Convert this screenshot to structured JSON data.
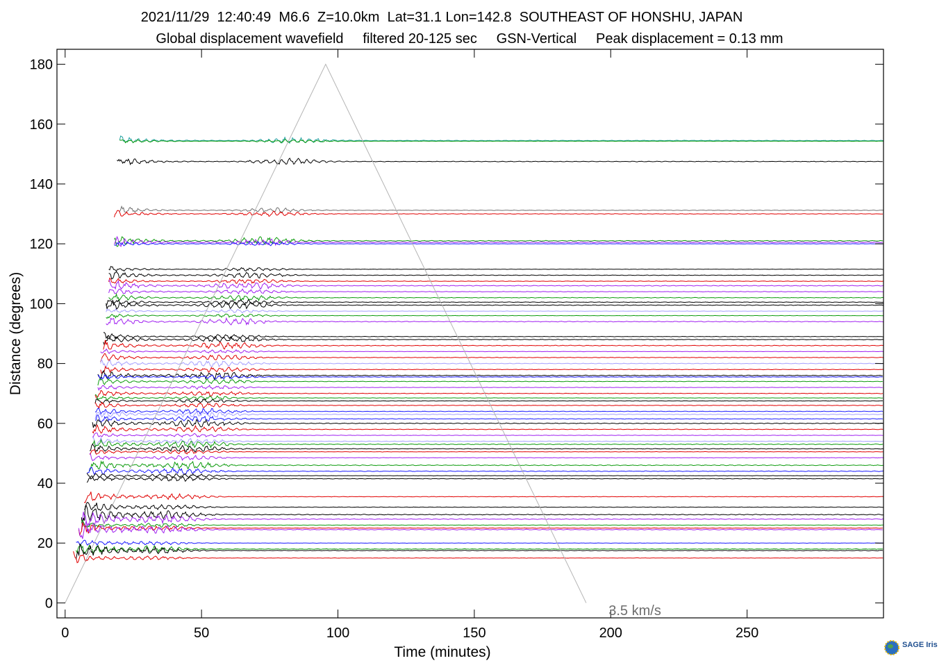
{
  "header": {
    "line1": "2021/11/29  12:40:49  M6.6  Z=10.0km  Lat=31.1 Lon=142.8  SOUTHEAST OF HONSHU, JAPAN",
    "line2": "Global displacement wavefield     filtered 20-125 sec     GSN-Vertical     Peak displacement = 0.13 mm"
  },
  "chart_data": {
    "type": "line",
    "title": "2021/11/29  12:40:49  M6.6  Z=10.0km  Lat=31.1 Lon=142.8  SOUTHEAST OF HONSHU, JAPAN",
    "subtitle": "Global displacement wavefield     filtered 20-125 sec     GSN-Vertical     Peak displacement = 0.13 mm",
    "xlabel": "Time (minutes)",
    "ylabel": "Distance (degrees)",
    "xlim": [
      -3,
      300
    ],
    "ylim": [
      -5,
      185
    ],
    "xticks": [
      0,
      50,
      100,
      150,
      200,
      250
    ],
    "yticks": [
      0,
      20,
      40,
      60,
      80,
      100,
      120,
      140,
      160,
      180
    ],
    "grid": false,
    "annotation": "3.5 km/s",
    "reference_line": {
      "name": "3.5 km/s",
      "points": [
        [
          0,
          0
        ],
        [
          95.5,
          180
        ],
        [
          191,
          0
        ]
      ],
      "color": "#b4b4b4"
    },
    "colors": {
      "black": "#000000",
      "red": "#e00000",
      "blue": "#1a1aff",
      "green": "#0b9a0b",
      "violet": "#a020f0",
      "lavender": "#a6a0ff",
      "gray": "#707070",
      "teal": "#20a0a0"
    },
    "traces": [
      {
        "distance": 154.5,
        "color": "#20a0a0",
        "start": 20
      },
      {
        "distance": 154.3,
        "color": "#0b9a0b",
        "start": 20
      },
      {
        "distance": 147.5,
        "color": "#000000",
        "start": 19
      },
      {
        "distance": 131.2,
        "color": "#707070",
        "start": 20
      },
      {
        "distance": 130.0,
        "color": "#e00000",
        "start": 18
      },
      {
        "distance": 121.0,
        "color": "#0b9a0b",
        "start": 18
      },
      {
        "distance": 120.5,
        "color": "#a020f0",
        "start": 18
      },
      {
        "distance": 120.0,
        "color": "#1a1aff",
        "start": 18
      },
      {
        "distance": 111.5,
        "color": "#000000",
        "start": 16
      },
      {
        "distance": 109.5,
        "color": "#000000",
        "start": 16
      },
      {
        "distance": 107.5,
        "color": "#e00000",
        "start": 16
      },
      {
        "distance": 106.0,
        "color": "#a020f0",
        "start": 16
      },
      {
        "distance": 104.0,
        "color": "#a020f0",
        "start": 16
      },
      {
        "distance": 102.0,
        "color": "#0b9a0b",
        "start": 16
      },
      {
        "distance": 100.5,
        "color": "#000000",
        "start": 15
      },
      {
        "distance": 99.5,
        "color": "#000000",
        "start": 15
      },
      {
        "distance": 97.5,
        "color": "#a6a0ff",
        "start": 15
      },
      {
        "distance": 96.0,
        "color": "#0b9a0b",
        "start": 15
      },
      {
        "distance": 94.0,
        "color": "#a020f0",
        "start": 15
      },
      {
        "distance": 89.0,
        "color": "#000000",
        "start": 14
      },
      {
        "distance": 88.0,
        "color": "#000000",
        "start": 14
      },
      {
        "distance": 86.0,
        "color": "#e00000",
        "start": 14
      },
      {
        "distance": 84.0,
        "color": "#a020f0",
        "start": 13
      },
      {
        "distance": 82.0,
        "color": "#e00000",
        "start": 13
      },
      {
        "distance": 80.0,
        "color": "#a6a0ff",
        "start": 13
      },
      {
        "distance": 78.0,
        "color": "#e00000",
        "start": 13
      },
      {
        "distance": 76.0,
        "color": "#000000",
        "start": 12
      },
      {
        "distance": 75.5,
        "color": "#1a1aff",
        "start": 12
      },
      {
        "distance": 74.0,
        "color": "#0b9a0b",
        "start": 12
      },
      {
        "distance": 72.0,
        "color": "#a020f0",
        "start": 12
      },
      {
        "distance": 70.0,
        "color": "#e00000",
        "start": 11
      },
      {
        "distance": 68.5,
        "color": "#0b9a0b",
        "start": 11
      },
      {
        "distance": 67.5,
        "color": "#000000",
        "start": 11
      },
      {
        "distance": 66.0,
        "color": "#e00000",
        "start": 11
      },
      {
        "distance": 64.0,
        "color": "#1a1aff",
        "start": 11
      },
      {
        "distance": 63.0,
        "color": "#a6a0ff",
        "start": 11
      },
      {
        "distance": 61.5,
        "color": "#1a1aff",
        "start": 11
      },
      {
        "distance": 60.0,
        "color": "#000000",
        "start": 10
      },
      {
        "distance": 58.0,
        "color": "#e00000",
        "start": 10
      },
      {
        "distance": 56.0,
        "color": "#a020f0",
        "start": 10
      },
      {
        "distance": 54.0,
        "color": "#a6a0ff",
        "start": 10
      },
      {
        "distance": 53.0,
        "color": "#0b9a0b",
        "start": 10
      },
      {
        "distance": 51.5,
        "color": "#000000",
        "start": 9
      },
      {
        "distance": 50.5,
        "color": "#e00000",
        "start": 9
      },
      {
        "distance": 48.5,
        "color": "#a020f0",
        "start": 9
      },
      {
        "distance": 46.0,
        "color": "#0b9a0b",
        "start": 9
      },
      {
        "distance": 44.0,
        "color": "#1a1aff",
        "start": 8
      },
      {
        "distance": 42.5,
        "color": "#000000",
        "start": 8
      },
      {
        "distance": 41.5,
        "color": "#000000",
        "start": 8
      },
      {
        "distance": 35.5,
        "color": "#e00000",
        "start": 7
      },
      {
        "distance": 32.0,
        "color": "#000000",
        "start": 7
      },
      {
        "distance": 29.5,
        "color": "#000000",
        "start": 6
      },
      {
        "distance": 28.0,
        "color": "#a020f0",
        "start": 6
      },
      {
        "distance": 26.0,
        "color": "#0b9a0b",
        "start": 6
      },
      {
        "distance": 25.0,
        "color": "#e00000",
        "start": 5
      },
      {
        "distance": 24.5,
        "color": "#a020f0",
        "start": 5
      },
      {
        "distance": 20.0,
        "color": "#1a1aff",
        "start": 4
      },
      {
        "distance": 18.0,
        "color": "#0b9a0b",
        "start": 4
      },
      {
        "distance": 17.5,
        "color": "#000000",
        "start": 4
      },
      {
        "distance": 15.0,
        "color": "#e00000",
        "start": 3
      }
    ]
  },
  "logo": {
    "text": "SAGE Iris"
  }
}
